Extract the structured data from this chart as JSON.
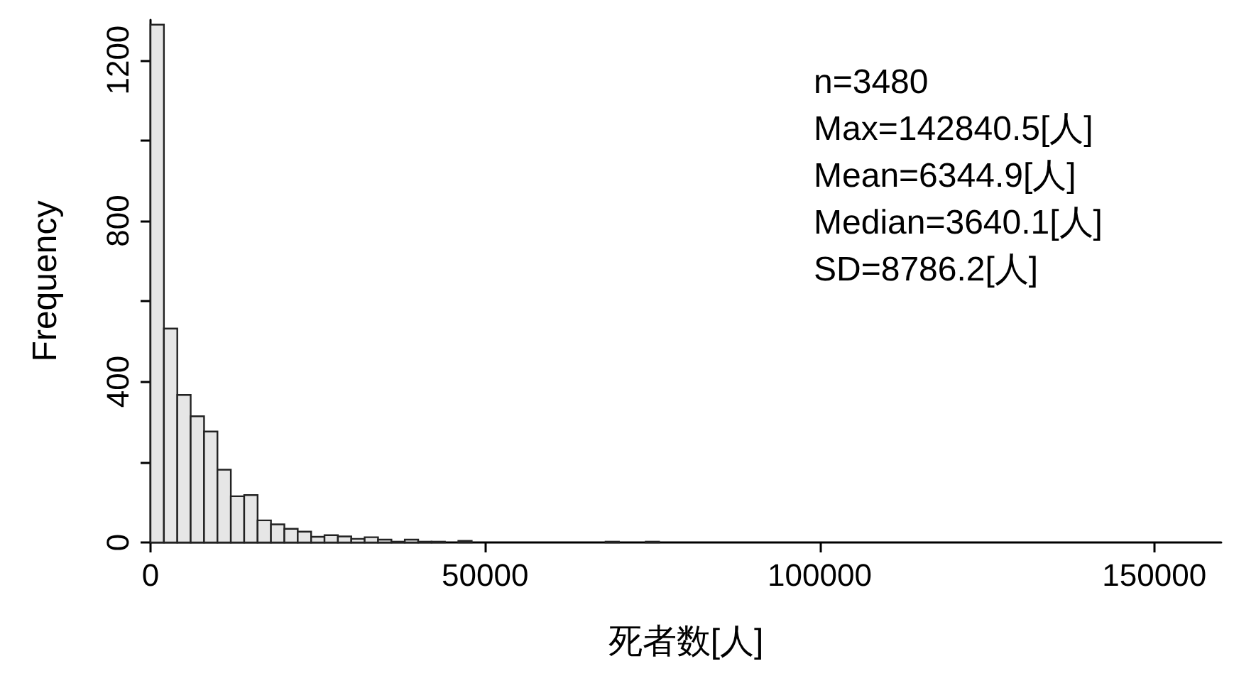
{
  "chart_data": {
    "type": "histogram",
    "xlabel": "死者数[人]",
    "ylabel": "Frequency",
    "bins": [
      0,
      2000,
      4000,
      6000,
      8000,
      10000,
      12000,
      14000,
      16000,
      18000,
      20000,
      22000,
      24000,
      26000,
      28000,
      30000,
      32000,
      34000,
      36000,
      38000,
      40000,
      42000,
      44000,
      46000,
      48000,
      50000,
      52000,
      54000,
      56000,
      58000,
      60000,
      62000,
      64000,
      66000,
      68000,
      70000,
      72000,
      74000,
      76000,
      78000,
      80000,
      82000,
      84000,
      86000,
      88000,
      90000,
      92000,
      94000,
      96000,
      98000,
      100000,
      102000,
      104000,
      106000,
      108000,
      110000,
      112000,
      114000,
      116000,
      118000,
      120000,
      122000,
      124000,
      126000,
      128000,
      130000,
      132000,
      134000,
      136000,
      138000,
      140000,
      142000,
      144000
    ],
    "values": [
      1288,
      532,
      367,
      314,
      276,
      181,
      115,
      118,
      55,
      45,
      34,
      27,
      14,
      18,
      15,
      9,
      13,
      7,
      2,
      7,
      2,
      2,
      null,
      4,
      0,
      0,
      0,
      0,
      0,
      0,
      0,
      0,
      0,
      0,
      2,
      0,
      0,
      2,
      0,
      0,
      0,
      0,
      0,
      0,
      0,
      0,
      0,
      0,
      0,
      0,
      0,
      0,
      0,
      0,
      0,
      0,
      0,
      0,
      0,
      0,
      0,
      0,
      0,
      0,
      0,
      0,
      0,
      0,
      0,
      0,
      0,
      null
    ],
    "color": "#e6e6e6",
    "xlim": [
      0,
      160000
    ],
    "xticks": [
      0,
      50000,
      100000,
      150000
    ],
    "ylim": [
      0,
      1300
    ],
    "yticks": [
      0,
      {
        "value": 200,
        "label": null
      },
      400,
      {
        "value": 600,
        "label": null
      },
      800,
      {
        "value": 1000,
        "label": null
      },
      1200
    ],
    "grid": false,
    "annotations": [
      "n=3480",
      "Max=142840.5[人]",
      "Mean=6344.9[人]",
      "Median=3640.1[人]",
      "SD=8786.2[人]"
    ]
  }
}
